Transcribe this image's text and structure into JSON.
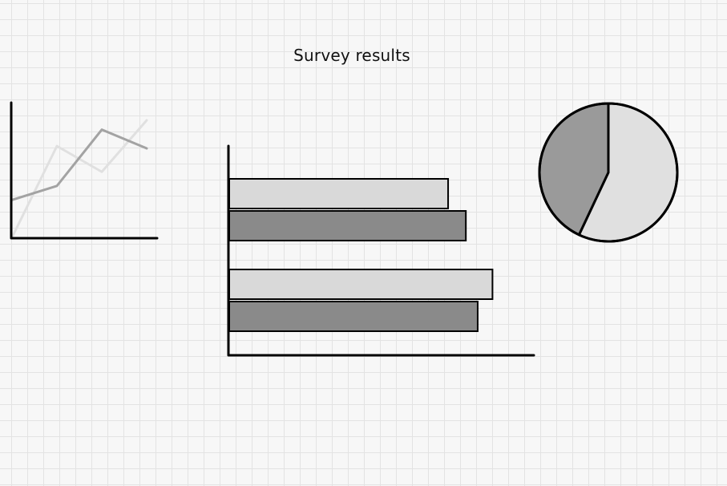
{
  "canvas": {
    "title": "Survey results"
  },
  "chart_data": [
    {
      "type": "line",
      "title": "",
      "x": [
        0,
        1,
        2,
        3
      ],
      "xlim": [
        0,
        3
      ],
      "ylim": [
        0,
        1
      ],
      "grid": false,
      "series": [
        {
          "values": [
            0.0,
            0.78,
            0.56,
            1.0
          ],
          "color": "#e0e0e0"
        },
        {
          "values": [
            0.32,
            0.44,
            0.92,
            0.76
          ],
          "color": "#a3a3a3"
        }
      ]
    },
    {
      "type": "bar",
      "orientation": "horizontal",
      "title": "",
      "categories": [
        "",
        ""
      ],
      "xlim": [
        0,
        100
      ],
      "grid": false,
      "series": [
        {
          "values": [
            74,
            89
          ],
          "color": "#d9d9d9"
        },
        {
          "values": [
            80,
            84
          ],
          "color": "#8a8a8a"
        }
      ]
    },
    {
      "type": "pie",
      "title": "",
      "values": [
        57,
        43
      ],
      "colors": [
        "#e0e0e0",
        "#9a9a9a"
      ]
    }
  ]
}
